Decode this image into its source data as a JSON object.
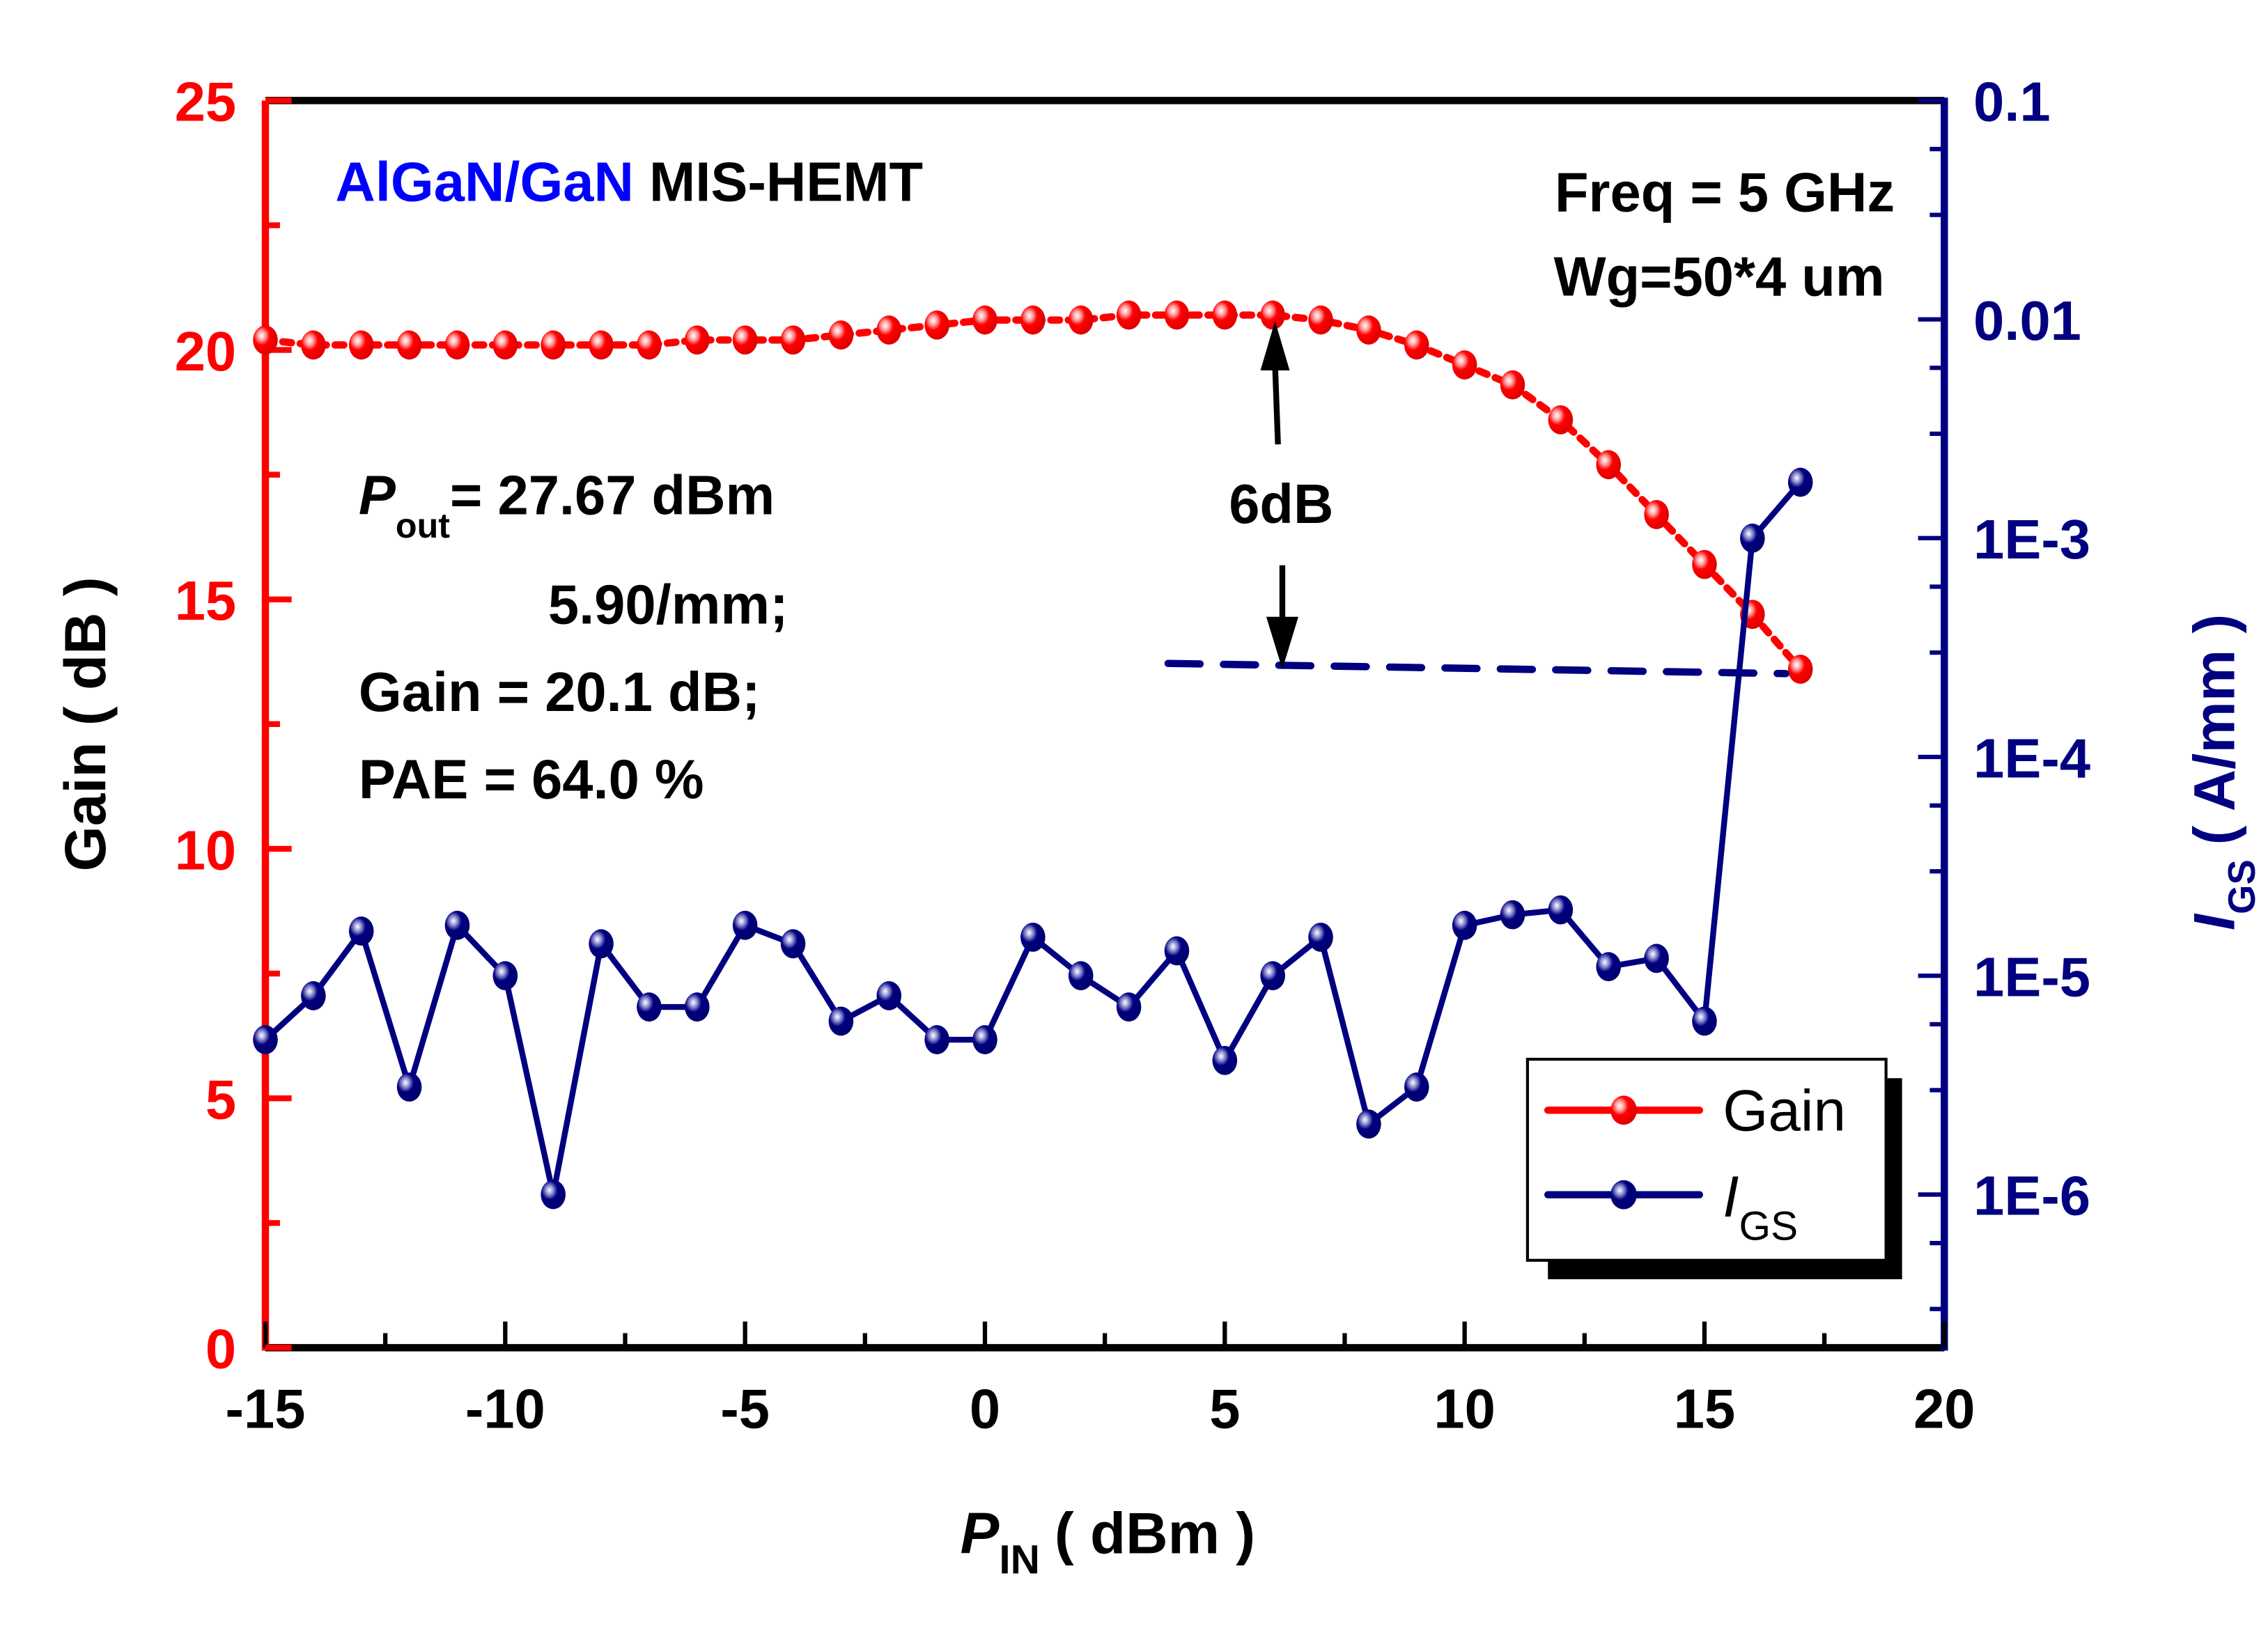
{
  "chart_data": {
    "type": "line",
    "title": "",
    "xlabel": "P",
    "xlabel_sub": "IN",
    "xlabel_unit": "( dBm )",
    "ylabel_left": "Gain ( dB )",
    "ylabel_right_main": "I",
    "ylabel_right_sub": "GS",
    "ylabel_right_unit": "( A/mm )",
    "xlim": [
      -15,
      20
    ],
    "ylim_left": [
      0,
      25
    ],
    "ylim_right_log10": [
      -6.7,
      -1
    ],
    "x_ticks": [
      "-15",
      "-10",
      "-5",
      "0",
      "5",
      "10",
      "15",
      "20"
    ],
    "x_tick_values": [
      -15,
      -10,
      -5,
      0,
      5,
      10,
      15,
      20
    ],
    "y_left_ticks": [
      "0",
      "5",
      "10",
      "15",
      "20",
      "25"
    ],
    "y_left_tick_values": [
      0,
      5,
      10,
      15,
      20,
      25
    ],
    "y_right_ticks": [
      "1E-6",
      "1E-5",
      "1E-4",
      "1E-3",
      "0.01",
      "0.1"
    ],
    "y_right_tick_log10": [
      -6,
      -5,
      -4,
      -3,
      -2,
      -1
    ],
    "grid": false,
    "legend_position": "bottom-right",
    "x": [
      -15,
      -14,
      -13,
      -12,
      -11,
      -10,
      -9,
      -8,
      -7,
      -6,
      -5,
      -4,
      -3,
      -2,
      -1,
      0,
      1,
      2,
      3,
      4,
      5,
      6,
      7,
      8,
      9,
      10,
      11,
      12,
      13,
      14,
      15,
      16,
      17
    ],
    "series": [
      {
        "name": "Gain",
        "axis": "left",
        "color": "#ff0000",
        "line_style": "dotted",
        "values": [
          20.2,
          20.1,
          20.1,
          20.1,
          20.1,
          20.1,
          20.1,
          20.1,
          20.1,
          20.2,
          20.2,
          20.2,
          20.3,
          20.4,
          20.5,
          20.6,
          20.6,
          20.6,
          20.7,
          20.7,
          20.7,
          20.7,
          20.6,
          20.4,
          20.1,
          19.7,
          19.3,
          18.6,
          17.7,
          16.7,
          15.7,
          14.7,
          13.6
        ]
      },
      {
        "name": "IGS",
        "legend_main": "I",
        "legend_sub": "GS",
        "axis": "right",
        "scale": "log",
        "color": "#000080",
        "line_style": "solid",
        "values": [
          5.1e-06,
          8.1e-06,
          1.6e-05,
          3.1e-06,
          1.7e-05,
          1e-05,
          1e-06,
          1.4e-05,
          7.2e-06,
          7.2e-06,
          1.7e-05,
          1.4e-05,
          6.2e-06,
          8.1e-06,
          5.1e-06,
          5.1e-06,
          1.5e-05,
          1e-05,
          7.2e-06,
          1.3e-05,
          4.1e-06,
          1e-05,
          1.5e-05,
          2.1e-06,
          3.1e-06,
          1.7e-05,
          1.9e-05,
          2e-05,
          1.1e-05,
          1.2e-05,
          6.2e-06,
          0.001,
          0.0018
        ]
      }
    ],
    "annotations": {
      "device_part1": "AlGaN/GaN",
      "device_part2": " MIS-HEMT",
      "freq": "Freq = 5 GHz",
      "wg": "Wg=50*4 um",
      "pout_symbol": "P",
      "pout_sub": "out",
      "pout_value": "=  27.67 dBm",
      "pout_density": "5.90/mm;",
      "gain_line": "Gain = 20.1 dB;",
      "pae_line": "PAE = 64.0 %",
      "compression_label": "6dB",
      "compression_arrow_x": 6.2,
      "compression_ref_gain": 13.6,
      "compression_dash_x_range": [
        4,
        17
      ]
    },
    "colors": {
      "gain": "#ff0000",
      "igs": "#000080",
      "device_blue": "#0000ff",
      "text": "#000000"
    }
  }
}
